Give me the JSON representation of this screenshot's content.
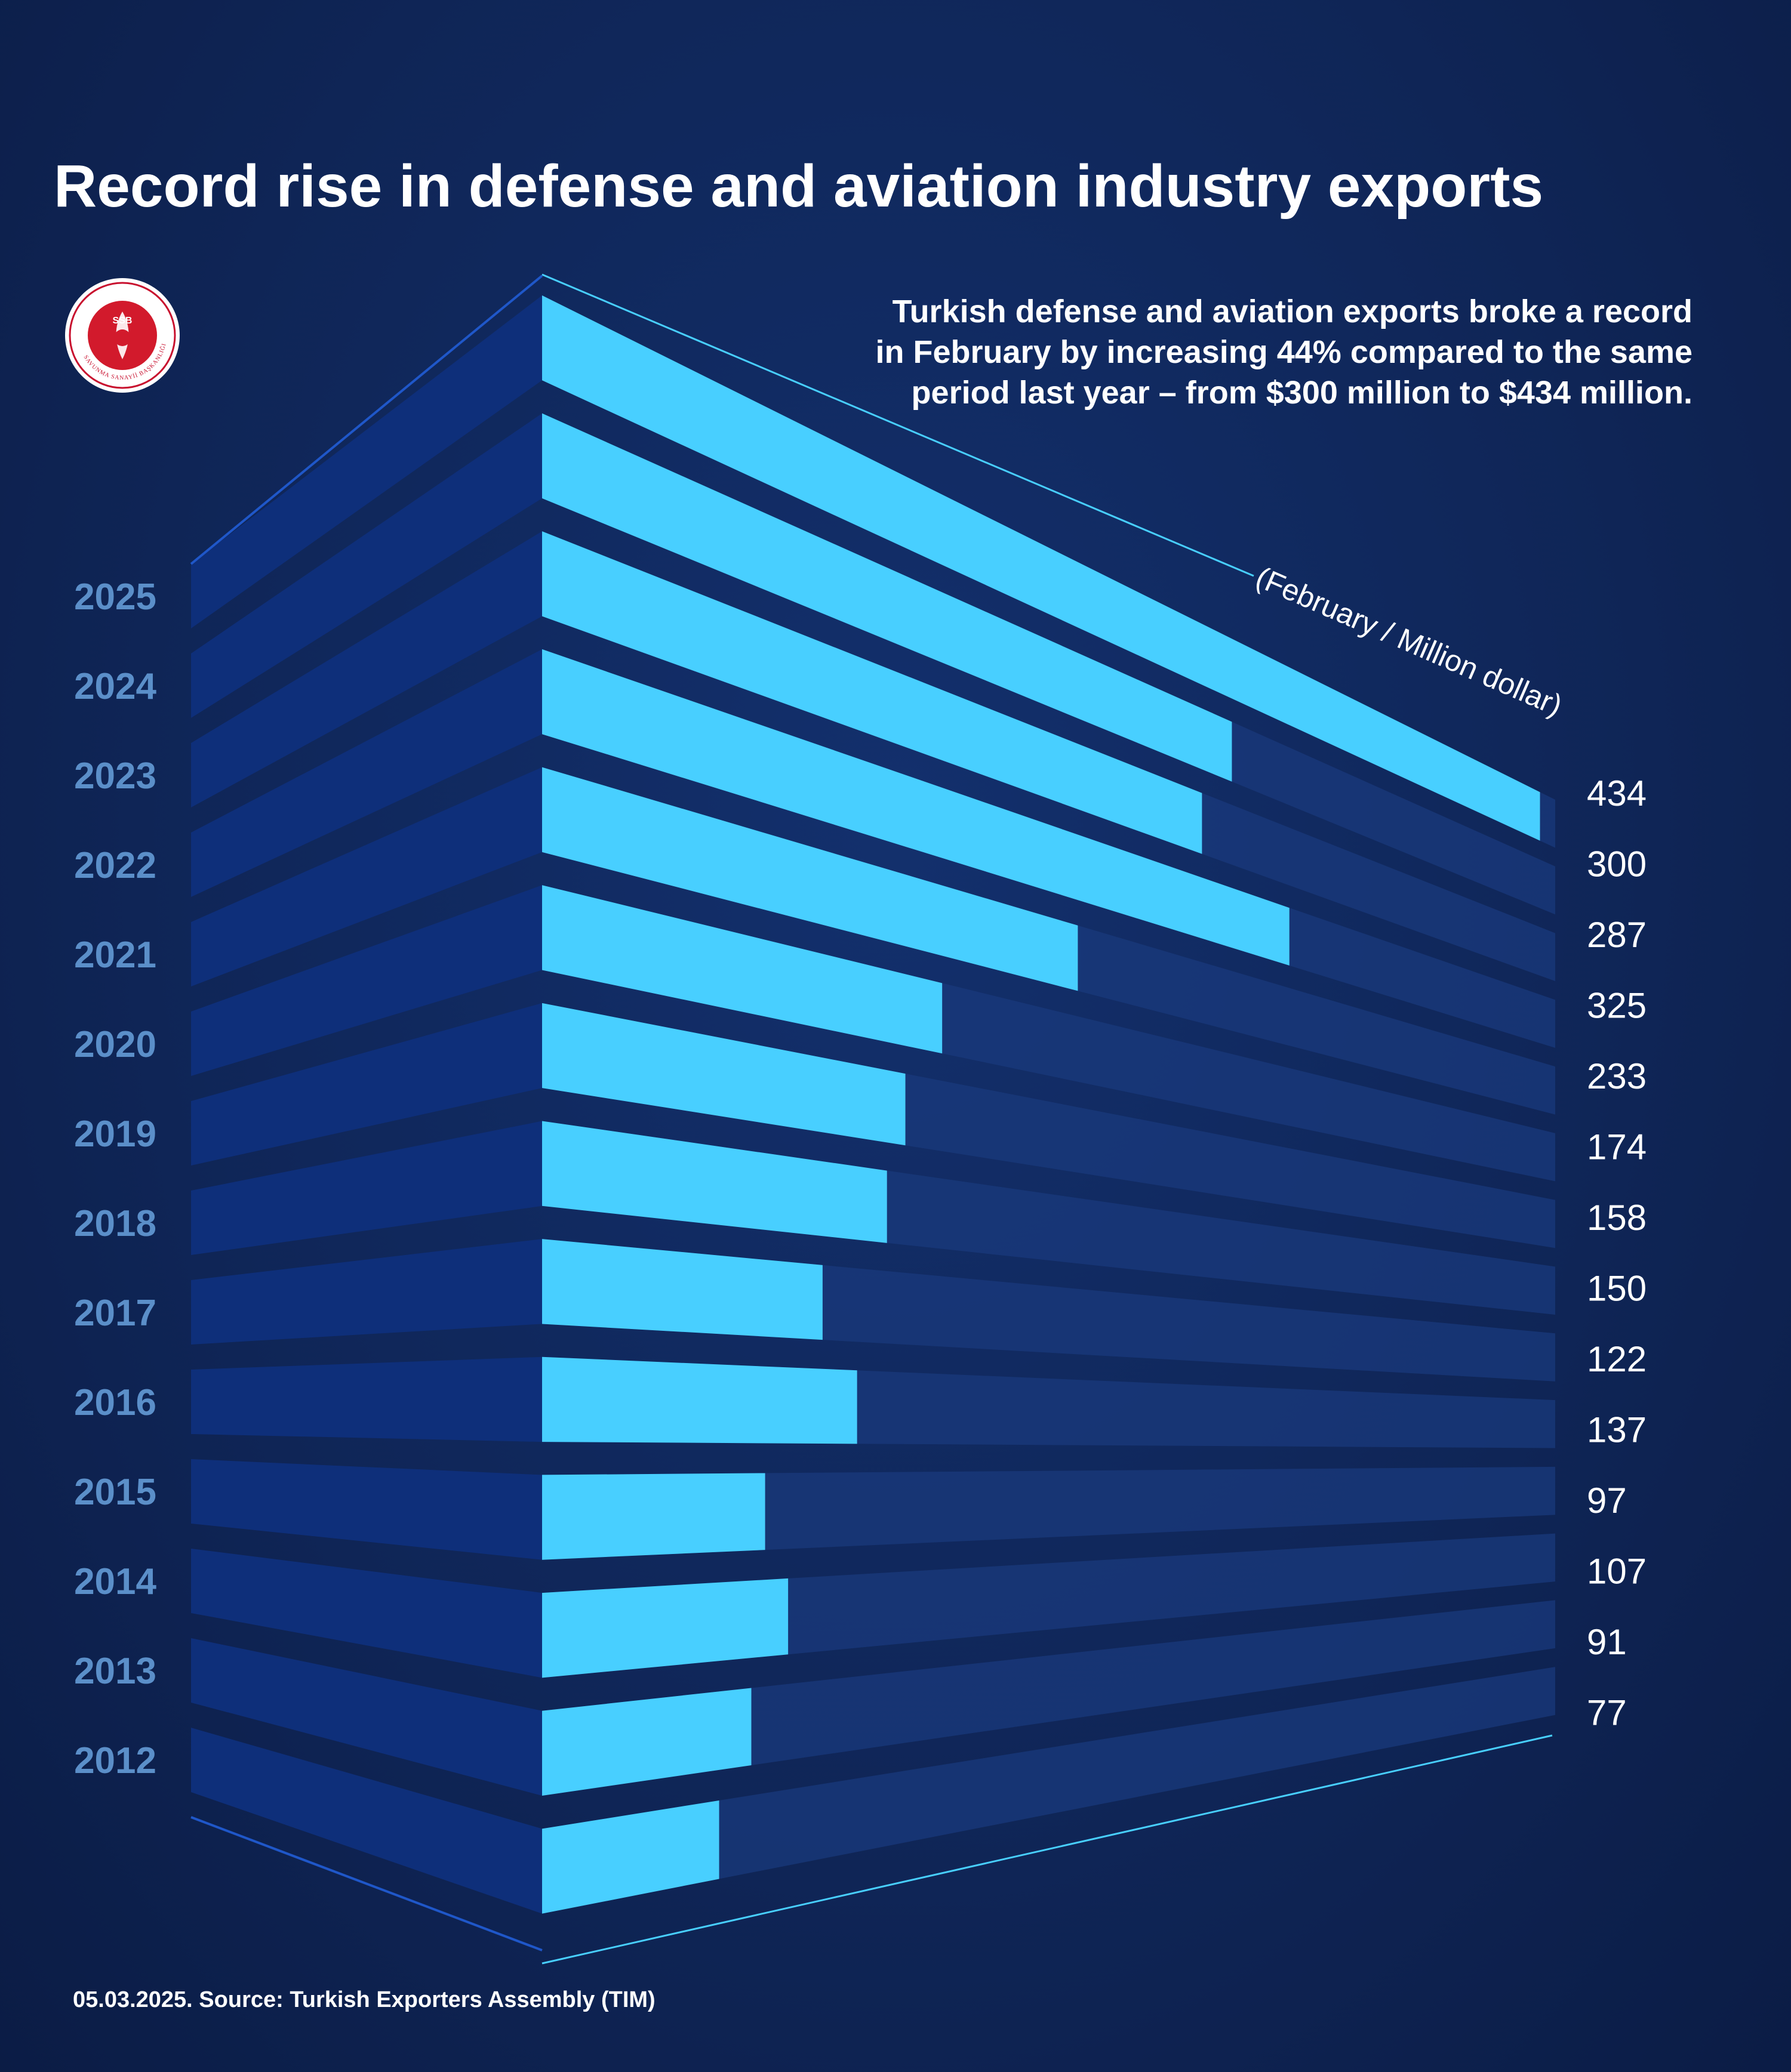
{
  "title": "Record rise in defense and aviation industry exports",
  "subtitle": "Turkish defense and aviation exports broke a record in February by increasing 44% compared to the same period last year – from $300 million to $434 million.",
  "logo": {
    "label": "SSB",
    "ring_text": "SAVUNMA SANAYİİ BAŞKANLIĞI",
    "icon": "ssb-emblem-icon"
  },
  "footer": "05.03.2025. Source: Turkish Exporters Assembly (TIM)",
  "colors": {
    "background": "#10265a",
    "bar": "#48cfff",
    "bar_back": "#1a3a7c",
    "bar_side": "#0e2f7a",
    "year_text": "#5b8fc9",
    "value_text": "#ffffff"
  },
  "chart_data": {
    "type": "bar",
    "unit_label": "(February / Million dollar)",
    "categories": [
      "2025",
      "2024",
      "2023",
      "2022",
      "2021",
      "2020",
      "2019",
      "2018",
      "2017",
      "2016",
      "2015",
      "2014",
      "2013",
      "2012"
    ],
    "values": [
      434,
      300,
      287,
      325,
      233,
      174,
      158,
      150,
      122,
      137,
      97,
      107,
      91,
      77
    ],
    "value_labels": [
      "434",
      "300",
      "287",
      "325",
      "233",
      "174",
      "158",
      "150",
      "122",
      "137",
      "97",
      "107",
      "91",
      "77"
    ],
    "orientation": "horizontal",
    "grid": false,
    "legend": "none"
  }
}
